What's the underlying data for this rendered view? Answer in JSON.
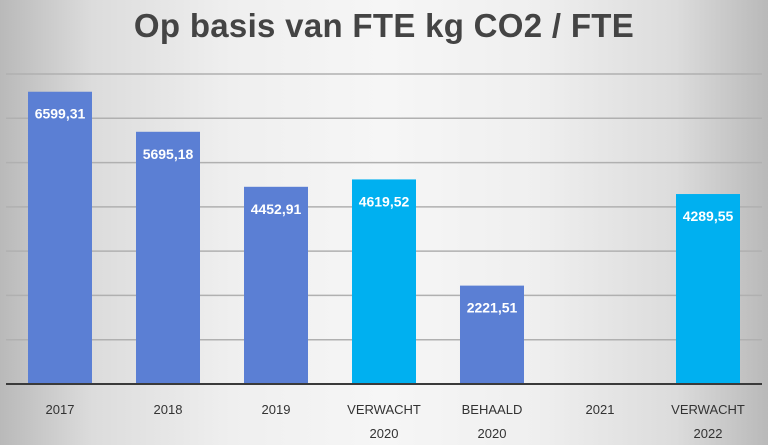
{
  "chart_data": {
    "type": "bar",
    "title": "Op basis van FTE kg CO2 / FTE",
    "categories": [
      [
        "2017"
      ],
      [
        "2018"
      ],
      [
        "2019"
      ],
      [
        "VERWACHT",
        "2020"
      ],
      [
        "BEHAALD",
        "2020"
      ],
      [
        "2021"
      ],
      [
        "VERWACHT",
        "2022"
      ]
    ],
    "values": [
      6599.31,
      5695.18,
      4452.91,
      4619.52,
      2221.51,
      null,
      4289.55
    ],
    "value_labels": [
      "6599,31",
      "5695,18",
      "4452,91",
      "4619,52",
      "2221,51",
      "",
      "4289,55"
    ],
    "kinds": [
      "actual",
      "actual",
      "actual",
      "expected",
      "actual",
      "none",
      "expected"
    ],
    "xlabel": "",
    "ylabel": "",
    "ylim": [
      0,
      7000
    ],
    "gridlines": [
      1000,
      2000,
      3000,
      4000,
      5000,
      6000,
      7000
    ],
    "colors": {
      "actual": "#5b7fd4",
      "expected": "#00b0f0",
      "axis": "#3a3a3a",
      "grid": "#b0b0b0"
    },
    "legend": "none"
  }
}
